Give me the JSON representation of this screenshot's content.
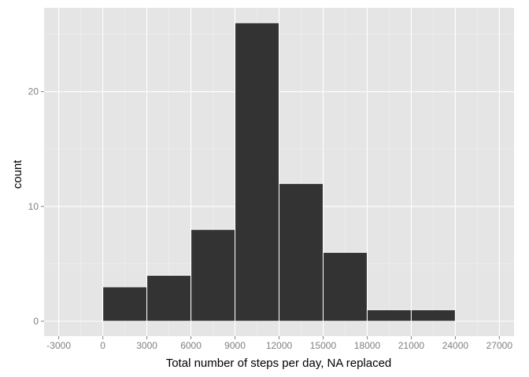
{
  "chart_data": {
    "type": "bar",
    "subtype": "histogram",
    "bin_width": 3000,
    "bins": [
      {
        "start": 0,
        "end": 3000,
        "count": 3
      },
      {
        "start": 3000,
        "end": 6000,
        "count": 4
      },
      {
        "start": 6000,
        "end": 9000,
        "count": 8
      },
      {
        "start": 9000,
        "end": 12000,
        "count": 26
      },
      {
        "start": 12000,
        "end": 15000,
        "count": 12
      },
      {
        "start": 15000,
        "end": 18000,
        "count": 6
      },
      {
        "start": 18000,
        "end": 21000,
        "count": 1
      },
      {
        "start": 21000,
        "end": 24000,
        "count": 1
      }
    ],
    "xlabel": "Total number of steps per day, NA replaced",
    "ylabel": "count",
    "xlim": [
      -4000,
      28000
    ],
    "ylim": [
      -1.3,
      27.3
    ],
    "x_ticks": [
      -3000,
      0,
      3000,
      6000,
      9000,
      12000,
      15000,
      18000,
      21000,
      24000,
      27000
    ],
    "y_ticks": [
      0,
      10,
      20
    ],
    "grid": true,
    "legend": "none",
    "colors": {
      "panel_background": "#e5e5e5",
      "grid_major": "#ffffff",
      "grid_minor": "#f2f2f2",
      "bar_fill": "#333333",
      "bar_outline": "#ffffff",
      "tick_label": "#7f7f7f"
    }
  }
}
